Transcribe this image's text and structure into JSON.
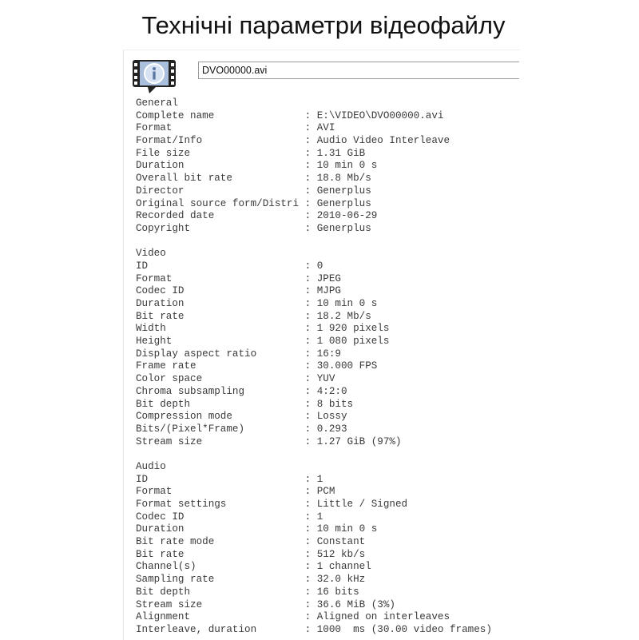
{
  "title": "Технічні параметри відеофайлу",
  "file_name_field": "DVO00000.avi",
  "icon": "media-info-icon",
  "separator": ": ",
  "sections": [
    {
      "heading": "General",
      "rows": [
        {
          "label": "Complete name",
          "value": "E:\\VIDEO\\DVO00000.avi"
        },
        {
          "label": "Format",
          "value": "AVI"
        },
        {
          "label": "Format/Info",
          "value": "Audio Video Interleave"
        },
        {
          "label": "File size",
          "value": "1.31 GiB"
        },
        {
          "label": "Duration",
          "value": "10 min 0 s"
        },
        {
          "label": "Overall bit rate",
          "value": "18.8 Mb/s"
        },
        {
          "label": "Director",
          "value": "Generplus"
        },
        {
          "label": "Original source form/Distri",
          "value": "Generplus"
        },
        {
          "label": "Recorded date",
          "value": "2010-06-29"
        },
        {
          "label": "Copyright",
          "value": "Generplus"
        }
      ]
    },
    {
      "heading": "Video",
      "rows": [
        {
          "label": "ID",
          "value": "0"
        },
        {
          "label": "Format",
          "value": "JPEG"
        },
        {
          "label": "Codec ID",
          "value": "MJPG"
        },
        {
          "label": "Duration",
          "value": "10 min 0 s"
        },
        {
          "label": "Bit rate",
          "value": "18.2 Mb/s"
        },
        {
          "label": "Width",
          "value": "1 920 pixels"
        },
        {
          "label": "Height",
          "value": "1 080 pixels"
        },
        {
          "label": "Display aspect ratio",
          "value": "16:9"
        },
        {
          "label": "Frame rate",
          "value": "30.000 FPS"
        },
        {
          "label": "Color space",
          "value": "YUV"
        },
        {
          "label": "Chroma subsampling",
          "value": "4:2:0"
        },
        {
          "label": "Bit depth",
          "value": "8 bits"
        },
        {
          "label": "Compression mode",
          "value": "Lossy"
        },
        {
          "label": "Bits/(Pixel*Frame)",
          "value": "0.293"
        },
        {
          "label": "Stream size",
          "value": "1.27 GiB (97%)"
        }
      ]
    },
    {
      "heading": "Audio",
      "rows": [
        {
          "label": "ID",
          "value": "1"
        },
        {
          "label": "Format",
          "value": "PCM"
        },
        {
          "label": "Format settings",
          "value": "Little / Signed"
        },
        {
          "label": "Codec ID",
          "value": "1"
        },
        {
          "label": "Duration",
          "value": "10 min 0 s"
        },
        {
          "label": "Bit rate mode",
          "value": "Constant"
        },
        {
          "label": "Bit rate",
          "value": "512 kb/s"
        },
        {
          "label": "Channel(s)",
          "value": "1 channel"
        },
        {
          "label": "Sampling rate",
          "value": "32.0 kHz"
        },
        {
          "label": "Bit depth",
          "value": "16 bits"
        },
        {
          "label": "Stream size",
          "value": "36.6 MiB (3%)"
        },
        {
          "label": "Alignment",
          "value": "Aligned on interleaves"
        },
        {
          "label": "Interleave, duration",
          "value": "1000  ms (30.00 video frames)"
        }
      ]
    }
  ]
}
